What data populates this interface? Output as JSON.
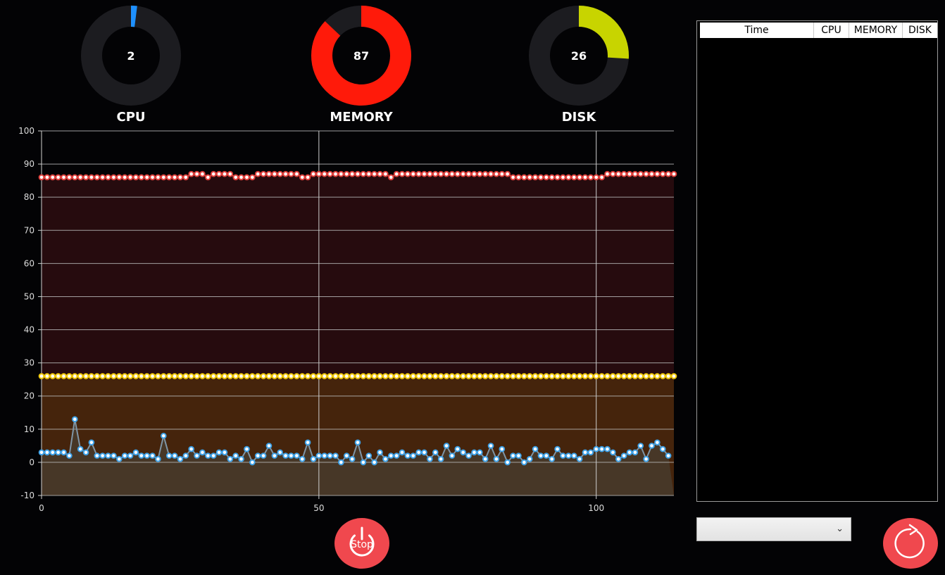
{
  "gauges": [
    {
      "name": "CPU",
      "value": 2,
      "color": "#1e90ff"
    },
    {
      "name": "MEMORY",
      "value": 87,
      "color": "#ff1a0a"
    },
    {
      "name": "DISK",
      "value": 26,
      "color": "#c8d400"
    }
  ],
  "chart_data": {
    "type": "line",
    "y_ticks": [
      "100",
      "90",
      "80",
      "70",
      "60",
      "50",
      "40",
      "30",
      "20",
      "10",
      "0",
      "-10"
    ],
    "x_ticks": [
      "0",
      "50",
      "100"
    ],
    "ylim": [
      -10,
      100
    ],
    "xlim": [
      0,
      114
    ],
    "grid": true,
    "series": [
      {
        "name": "MEMORY",
        "color": "#e0403c",
        "fill": "#260b0e",
        "values": [
          86,
          86,
          86,
          86,
          86,
          86,
          86,
          86,
          86,
          86,
          86,
          86,
          86,
          86,
          86,
          86,
          86,
          86,
          86,
          86,
          86,
          86,
          86,
          86,
          86,
          86,
          86,
          87,
          87,
          87,
          86,
          87,
          87,
          87,
          87,
          86,
          86,
          86,
          86,
          87,
          87,
          87,
          87,
          87,
          87,
          87,
          87,
          86,
          86,
          87,
          87,
          87,
          87,
          87,
          87,
          87,
          87,
          87,
          87,
          87,
          87,
          87,
          87,
          86,
          87,
          87,
          87,
          87,
          87,
          87,
          87,
          87,
          87,
          87,
          87,
          87,
          87,
          87,
          87,
          87,
          87,
          87,
          87,
          87,
          87,
          86,
          86,
          86,
          86,
          86,
          86,
          86,
          86,
          86,
          86,
          86,
          86,
          86,
          86,
          86,
          86,
          86,
          87,
          87,
          87,
          87,
          87,
          87,
          87,
          87,
          87,
          87,
          87,
          87,
          87
        ]
      },
      {
        "name": "DISK",
        "color": "#f0c80a",
        "fill": "#45240c",
        "values": [
          26,
          26,
          26,
          26,
          26,
          26,
          26,
          26,
          26,
          26,
          26,
          26,
          26,
          26,
          26,
          26,
          26,
          26,
          26,
          26,
          26,
          26,
          26,
          26,
          26,
          26,
          26,
          26,
          26,
          26,
          26,
          26,
          26,
          26,
          26,
          26,
          26,
          26,
          26,
          26,
          26,
          26,
          26,
          26,
          26,
          26,
          26,
          26,
          26,
          26,
          26,
          26,
          26,
          26,
          26,
          26,
          26,
          26,
          26,
          26,
          26,
          26,
          26,
          26,
          26,
          26,
          26,
          26,
          26,
          26,
          26,
          26,
          26,
          26,
          26,
          26,
          26,
          26,
          26,
          26,
          26,
          26,
          26,
          26,
          26,
          26,
          26,
          26,
          26,
          26,
          26,
          26,
          26,
          26,
          26,
          26,
          26,
          26,
          26,
          26,
          26,
          26,
          26,
          26,
          26,
          26,
          26,
          26,
          26,
          26,
          26,
          26,
          26,
          26,
          26
        ]
      },
      {
        "name": "CPU",
        "color": "#3ea2e8",
        "line_color": "#7f95a6",
        "fill": "#473727",
        "values": [
          3,
          3,
          3,
          3,
          3,
          2,
          13,
          4,
          3,
          6,
          2,
          2,
          2,
          2,
          1,
          2,
          2,
          3,
          2,
          2,
          2,
          1,
          8,
          2,
          2,
          1,
          2,
          4,
          2,
          3,
          2,
          2,
          3,
          3,
          1,
          2,
          1,
          4,
          0,
          2,
          2,
          5,
          2,
          3,
          2,
          2,
          2,
          1,
          6,
          1,
          2,
          2,
          2,
          2,
          0,
          2,
          1,
          6,
          0,
          2,
          0,
          3,
          1,
          2,
          2,
          3,
          2,
          2,
          3,
          3,
          1,
          3,
          1,
          5,
          2,
          4,
          3,
          2,
          3,
          3,
          1,
          5,
          1,
          4,
          0,
          2,
          2,
          0,
          1,
          4,
          2,
          2,
          1,
          4,
          2,
          2,
          2,
          1,
          3,
          3,
          4,
          4,
          4,
          3,
          1,
          2,
          3,
          3,
          5,
          1,
          5,
          6,
          4,
          2
        ]
      }
    ]
  },
  "controls": {
    "stop_label": "Stop",
    "dropdown_value": "",
    "dropdown_chevron": "⌄"
  },
  "table": {
    "headers": [
      "Time",
      "CPU",
      "MEMORY",
      "DISK"
    ],
    "rows": []
  },
  "icons": {
    "power": "power-icon",
    "refresh": "refresh-icon"
  }
}
